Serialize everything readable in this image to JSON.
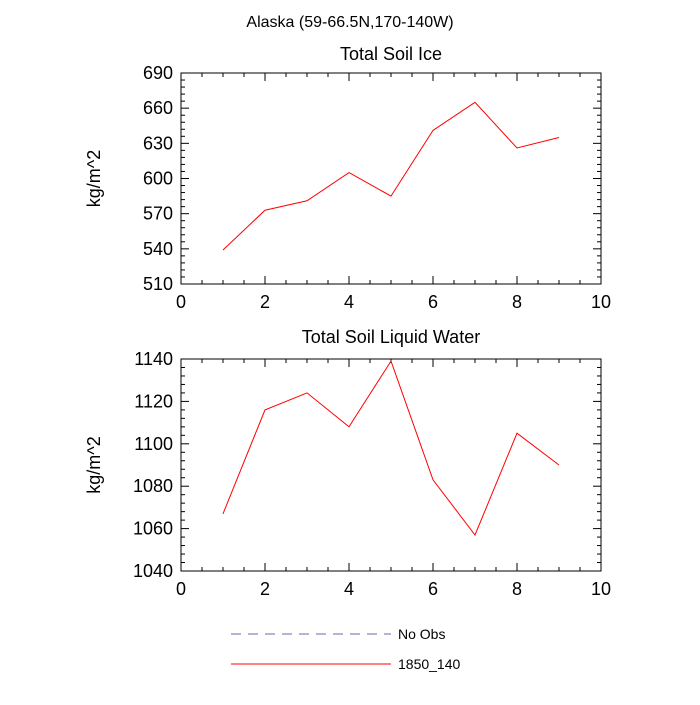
{
  "figure_title": "Alaska (59-66.5N,170-140W)",
  "chart_data": [
    {
      "type": "line",
      "title": "Total Soil Ice",
      "xlabel": "",
      "ylabel": "kg/m^2",
      "xlim": [
        0,
        10
      ],
      "ylim": [
        510,
        690
      ],
      "x_ticks": [
        0,
        2,
        4,
        6,
        8,
        10
      ],
      "y_ticks": [
        510,
        540,
        570,
        600,
        630,
        660,
        690
      ],
      "grid": false,
      "series": [
        {
          "name": "1850_140",
          "color": "#ff0000",
          "x": [
            1,
            2,
            3,
            4,
            5,
            6,
            7,
            8,
            9
          ],
          "y": [
            539,
            573,
            581,
            605,
            585,
            641,
            665,
            626,
            635
          ]
        }
      ]
    },
    {
      "type": "line",
      "title": "Total Soil Liquid Water",
      "xlabel": "",
      "ylabel": "kg/m^2",
      "xlim": [
        0,
        10
      ],
      "ylim": [
        1040,
        1140
      ],
      "x_ticks": [
        0,
        2,
        4,
        6,
        8,
        10
      ],
      "y_ticks": [
        1040,
        1060,
        1080,
        1100,
        1120,
        1140
      ],
      "grid": false,
      "series": [
        {
          "name": "1850_140",
          "color": "#ff0000",
          "x": [
            1,
            2,
            3,
            4,
            5,
            6,
            7,
            8,
            9
          ],
          "y": [
            1067,
            1116,
            1124,
            1108,
            1139,
            1083,
            1057,
            1105,
            1090
          ]
        }
      ]
    }
  ],
  "legend": [
    {
      "label": "No Obs",
      "color": "#6a6aa8",
      "style": "dashed"
    },
    {
      "label": "1850_140",
      "color": "#ff0000",
      "style": "solid"
    }
  ]
}
